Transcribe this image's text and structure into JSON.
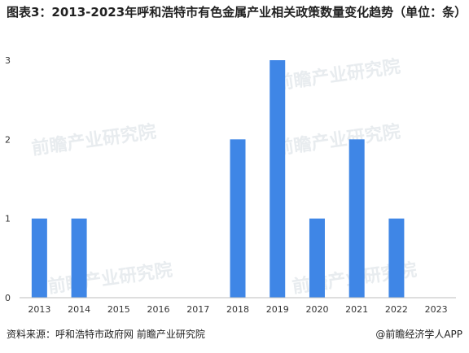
{
  "chart_data": {
    "type": "bar",
    "title": "图表3：2013-2023年呼和浩特市有色金属产业相关政策数量变化趋势（单位：条）",
    "categories": [
      "2013",
      "2014",
      "2015",
      "2016",
      "2017",
      "2018",
      "2019",
      "2020",
      "2021",
      "2022",
      "2023"
    ],
    "values": [
      1,
      1,
      0,
      0,
      0,
      2,
      3,
      1,
      2,
      1,
      0
    ],
    "ylim": [
      0,
      3
    ],
    "yticks": [
      "0",
      "1",
      "2",
      "3"
    ],
    "xlabel": "",
    "ylabel": "",
    "grid": false,
    "bar_color": "#3f86e6"
  },
  "watermark": "前瞻产业研究院",
  "footer": {
    "source": "资料来源：呼和浩特市政府网 前瞻产业研究院",
    "brand": "@前瞻经济学人APP"
  }
}
